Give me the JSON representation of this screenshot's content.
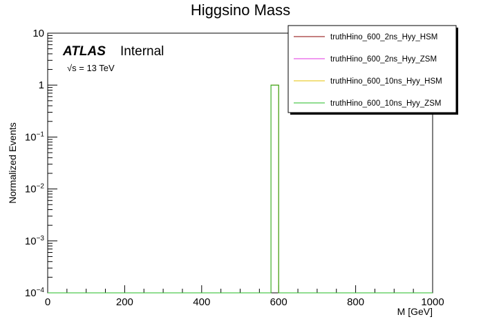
{
  "chart_data": {
    "type": "histogram",
    "title": "Higgsino Mass",
    "xlabel": "M [GeV]",
    "ylabel": "Normalized Events",
    "xlim": [
      0,
      1000
    ],
    "ylim": [
      0.0001,
      10
    ],
    "yscale": "log",
    "x_ticks": [
      "0",
      "200",
      "400",
      "600",
      "800",
      "1000"
    ],
    "y_ticks": [
      {
        "base": "10",
        "exp": ""
      },
      {
        "base": "1",
        "exp": ""
      },
      {
        "base": "10",
        "exp": "−1"
      },
      {
        "base": "10",
        "exp": "−2"
      },
      {
        "base": "10",
        "exp": "−3"
      },
      {
        "base": "10",
        "exp": "−4"
      }
    ],
    "grid": false,
    "legend_position": "top-right",
    "atlas_label": "ATLAS",
    "atlas_sublabel": "Internal",
    "energy_label": "√s = 13 TeV",
    "series": [
      {
        "name": "truthHino_600_2ns_Hyy_HSM",
        "color": "#8b0000",
        "bins": [
          {
            "x0": 580,
            "x1": 600,
            "value": 1.0
          }
        ]
      },
      {
        "name": "truthHino_600_2ns_Hyy_ZSM",
        "color": "#e033e0",
        "bins": [
          {
            "x0": 580,
            "x1": 600,
            "value": 1.0
          }
        ]
      },
      {
        "name": "truthHino_600_10ns_Hyy_HSM",
        "color": "#e6c200",
        "bins": [
          {
            "x0": 580,
            "x1": 600,
            "value": 1.0
          }
        ]
      },
      {
        "name": "truthHino_600_10ns_Hyy_ZSM",
        "color": "#22bb22",
        "bins": [
          {
            "x0": 580,
            "x1": 600,
            "value": 1.0
          }
        ]
      }
    ]
  }
}
